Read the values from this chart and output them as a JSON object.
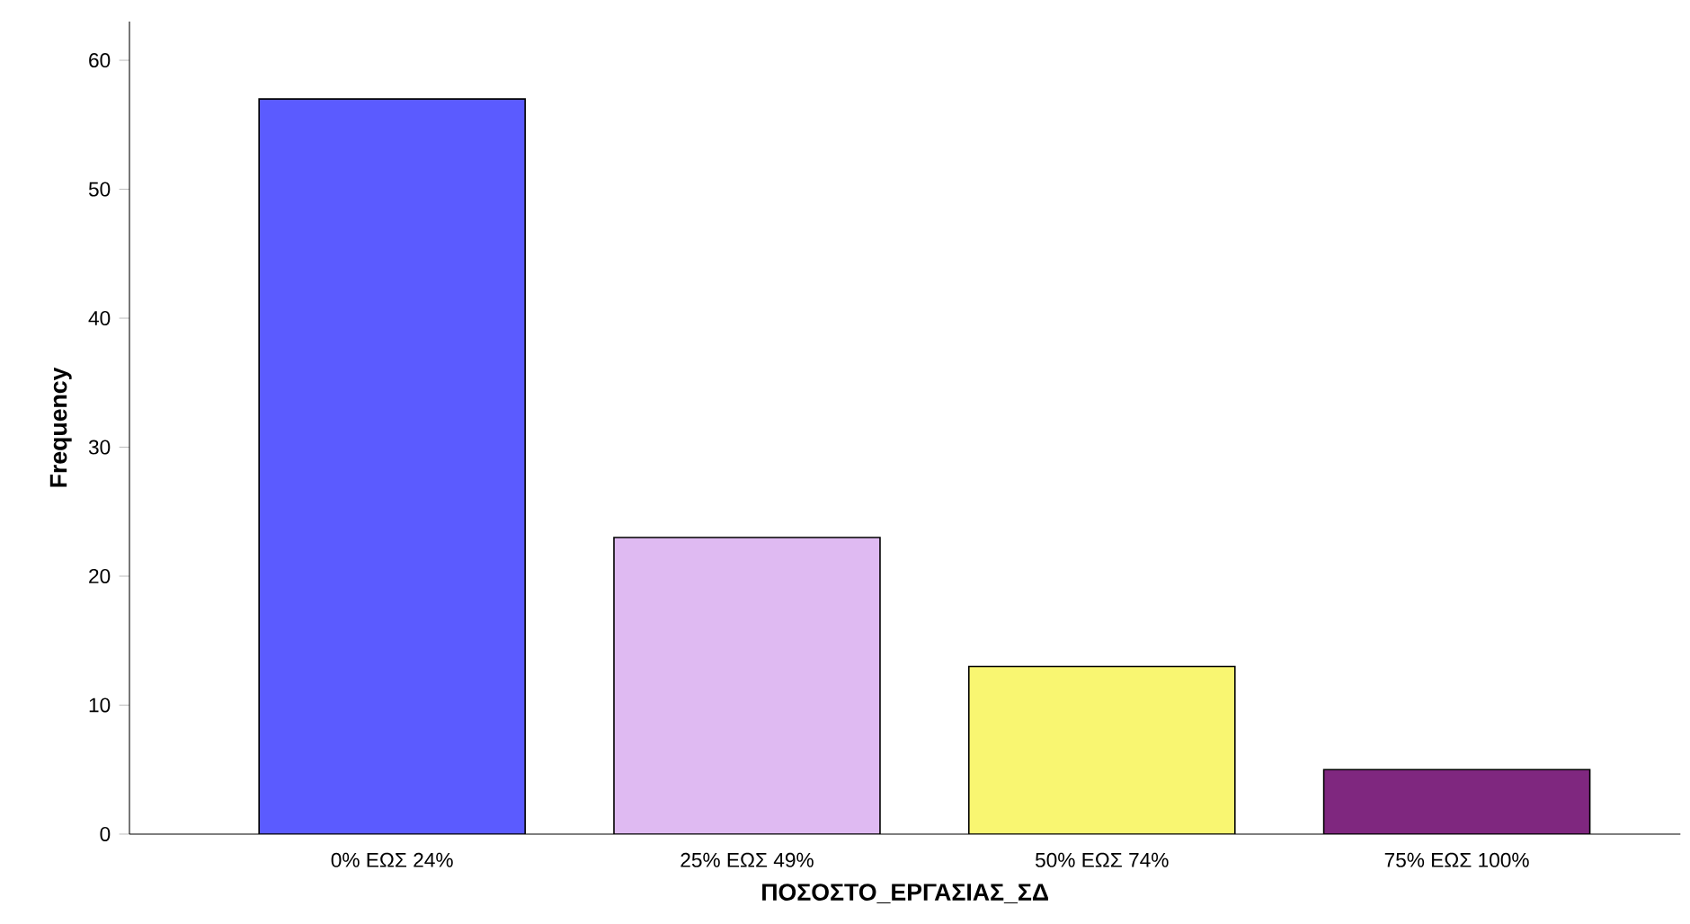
{
  "chart_data": {
    "type": "bar",
    "xlabel": "ΠΟΣΟΣΤΟ_ΕΡΓΑΣΙΑΣ_ΣΔ",
    "ylabel": "Frequency",
    "categories": [
      "0% ΕΩΣ 24%",
      "25% ΕΩΣ 49%",
      "50% ΕΩΣ 74%",
      "75% ΕΩΣ 100%"
    ],
    "values": [
      57,
      23,
      13,
      5
    ],
    "colors": [
      "#5b5bff",
      "#dfbaf2",
      "#f9f671",
      "#7f277f"
    ],
    "ylim": [
      0,
      63
    ],
    "yticks": [
      0,
      10,
      20,
      30,
      40,
      50,
      60
    ]
  }
}
